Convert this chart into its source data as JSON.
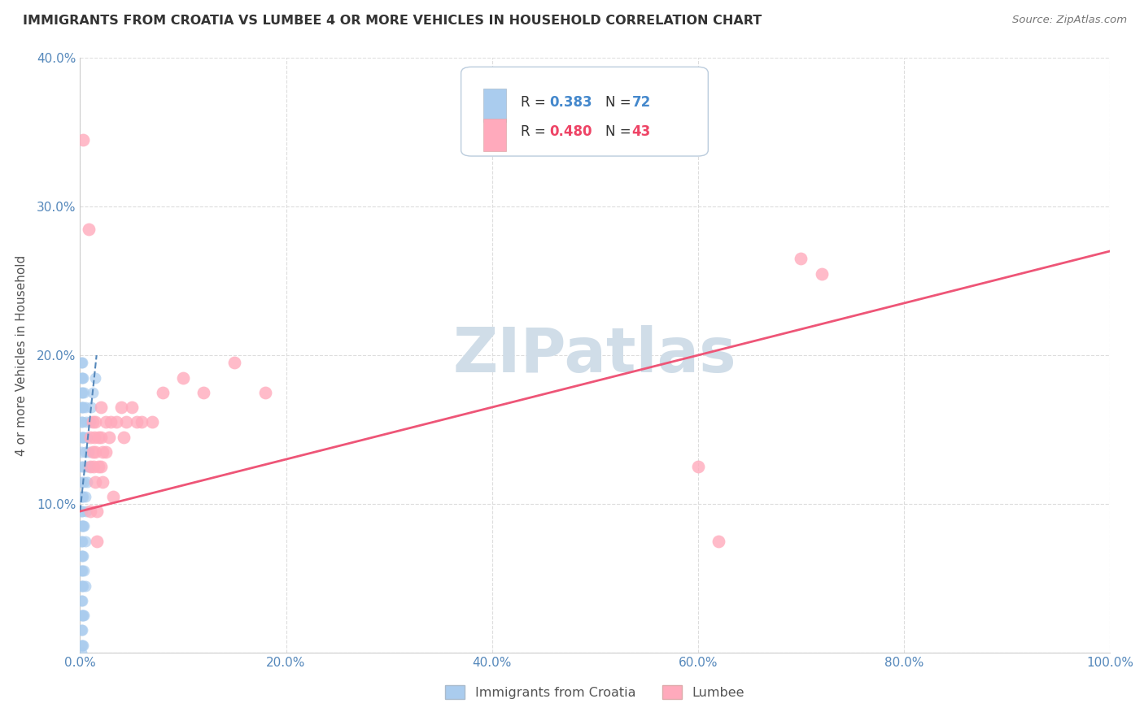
{
  "title": "IMMIGRANTS FROM CROATIA VS LUMBEE 4 OR MORE VEHICLES IN HOUSEHOLD CORRELATION CHART",
  "source": "Source: ZipAtlas.com",
  "ylabel": "4 or more Vehicles in Household",
  "xlim": [
    0,
    1.0
  ],
  "ylim": [
    0,
    0.4
  ],
  "xticks": [
    0.0,
    0.2,
    0.4,
    0.6,
    0.8,
    1.0
  ],
  "yticks": [
    0.0,
    0.1,
    0.2,
    0.3,
    0.4
  ],
  "xticklabels": [
    "0.0%",
    "20.0%",
    "40.0%",
    "60.0%",
    "80.0%",
    "100.0%"
  ],
  "yticklabels": [
    "",
    "10.0%",
    "20.0%",
    "30.0%",
    "40.0%"
  ],
  "bg_color": "#ffffff",
  "grid_color": "#dddddd",
  "blue_scatter_color": "#aaccee",
  "pink_scatter_color": "#ffaabc",
  "blue_line_color": "#5588bb",
  "pink_line_color": "#ee5577",
  "watermark_color": "#d0dde8",
  "scatter_blue": [
    [
      0.001,
      0.195
    ],
    [
      0.001,
      0.185
    ],
    [
      0.001,
      0.175
    ],
    [
      0.001,
      0.165
    ],
    [
      0.001,
      0.155
    ],
    [
      0.001,
      0.145
    ],
    [
      0.001,
      0.135
    ],
    [
      0.001,
      0.125
    ],
    [
      0.001,
      0.115
    ],
    [
      0.001,
      0.105
    ],
    [
      0.001,
      0.095
    ],
    [
      0.001,
      0.085
    ],
    [
      0.001,
      0.075
    ],
    [
      0.001,
      0.065
    ],
    [
      0.001,
      0.055
    ],
    [
      0.001,
      0.045
    ],
    [
      0.001,
      0.035
    ],
    [
      0.001,
      0.025
    ],
    [
      0.001,
      0.015
    ],
    [
      0.001,
      0.005
    ],
    [
      0.001,
      0.0
    ],
    [
      0.002,
      0.195
    ],
    [
      0.002,
      0.185
    ],
    [
      0.002,
      0.175
    ],
    [
      0.002,
      0.165
    ],
    [
      0.002,
      0.155
    ],
    [
      0.002,
      0.145
    ],
    [
      0.002,
      0.105
    ],
    [
      0.002,
      0.095
    ],
    [
      0.002,
      0.085
    ],
    [
      0.002,
      0.075
    ],
    [
      0.002,
      0.065
    ],
    [
      0.002,
      0.055
    ],
    [
      0.002,
      0.045
    ],
    [
      0.002,
      0.035
    ],
    [
      0.002,
      0.025
    ],
    [
      0.002,
      0.015
    ],
    [
      0.002,
      0.005
    ],
    [
      0.003,
      0.185
    ],
    [
      0.003,
      0.165
    ],
    [
      0.003,
      0.145
    ],
    [
      0.003,
      0.125
    ],
    [
      0.003,
      0.105
    ],
    [
      0.003,
      0.085
    ],
    [
      0.003,
      0.065
    ],
    [
      0.003,
      0.045
    ],
    [
      0.003,
      0.025
    ],
    [
      0.003,
      0.005
    ],
    [
      0.004,
      0.175
    ],
    [
      0.004,
      0.145
    ],
    [
      0.004,
      0.115
    ],
    [
      0.004,
      0.085
    ],
    [
      0.004,
      0.055
    ],
    [
      0.004,
      0.025
    ],
    [
      0.005,
      0.165
    ],
    [
      0.005,
      0.135
    ],
    [
      0.005,
      0.105
    ],
    [
      0.005,
      0.075
    ],
    [
      0.005,
      0.045
    ],
    [
      0.006,
      0.155
    ],
    [
      0.006,
      0.125
    ],
    [
      0.006,
      0.095
    ],
    [
      0.007,
      0.145
    ],
    [
      0.007,
      0.115
    ],
    [
      0.008,
      0.135
    ],
    [
      0.009,
      0.125
    ],
    [
      0.01,
      0.155
    ],
    [
      0.011,
      0.165
    ],
    [
      0.012,
      0.175
    ],
    [
      0.015,
      0.185
    ]
  ],
  "scatter_pink": [
    [
      0.003,
      0.345
    ],
    [
      0.008,
      0.285
    ],
    [
      0.01,
      0.145
    ],
    [
      0.01,
      0.125
    ],
    [
      0.01,
      0.095
    ],
    [
      0.012,
      0.155
    ],
    [
      0.012,
      0.135
    ],
    [
      0.013,
      0.125
    ],
    [
      0.014,
      0.145
    ],
    [
      0.015,
      0.155
    ],
    [
      0.015,
      0.135
    ],
    [
      0.015,
      0.115
    ],
    [
      0.016,
      0.095
    ],
    [
      0.016,
      0.075
    ],
    [
      0.018,
      0.145
    ],
    [
      0.018,
      0.125
    ],
    [
      0.02,
      0.165
    ],
    [
      0.02,
      0.145
    ],
    [
      0.02,
      0.125
    ],
    [
      0.022,
      0.135
    ],
    [
      0.022,
      0.115
    ],
    [
      0.025,
      0.155
    ],
    [
      0.025,
      0.135
    ],
    [
      0.028,
      0.145
    ],
    [
      0.03,
      0.155
    ],
    [
      0.032,
      0.105
    ],
    [
      0.035,
      0.155
    ],
    [
      0.04,
      0.165
    ],
    [
      0.042,
      0.145
    ],
    [
      0.045,
      0.155
    ],
    [
      0.05,
      0.165
    ],
    [
      0.055,
      0.155
    ],
    [
      0.06,
      0.155
    ],
    [
      0.07,
      0.155
    ],
    [
      0.08,
      0.175
    ],
    [
      0.1,
      0.185
    ],
    [
      0.12,
      0.175
    ],
    [
      0.15,
      0.195
    ],
    [
      0.18,
      0.175
    ],
    [
      0.6,
      0.125
    ],
    [
      0.62,
      0.075
    ],
    [
      0.7,
      0.265
    ],
    [
      0.72,
      0.255
    ]
  ],
  "blue_trend_x": [
    0.0,
    0.016
  ],
  "blue_trend_y": [
    0.095,
    0.2
  ],
  "pink_trend_x": [
    0.0,
    1.0
  ],
  "pink_trend_y": [
    0.095,
    0.27
  ]
}
